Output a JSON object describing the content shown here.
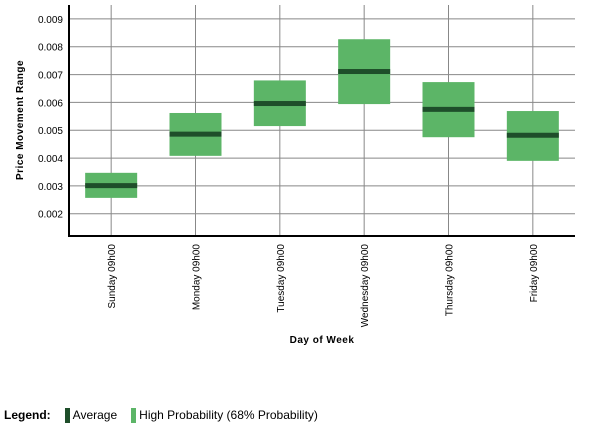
{
  "chart_data": {
    "type": "box",
    "xlabel": "Day of Week",
    "ylabel": "Price Movement Range",
    "ylim": [
      0.0012,
      0.0095
    ],
    "yticks": [
      "0.002",
      "0.003",
      "0.004",
      "0.005",
      "0.006",
      "0.007",
      "0.008",
      "0.009"
    ],
    "grid": true,
    "categories": [
      "Sunday 09h00",
      "Monday 09h00",
      "Tuesday 09h00",
      "Wednesday 09h00",
      "Thursday 09h00",
      "Friday 09h00"
    ],
    "series": [
      {
        "name": "Average",
        "values": [
          0.00301,
          0.00486,
          0.00596,
          0.00711,
          0.00575,
          0.00482
        ]
      },
      {
        "name": "High Probability (68% Probability)",
        "low": [
          0.00257,
          0.00408,
          0.00515,
          0.00594,
          0.00475,
          0.0039
        ],
        "high": [
          0.00347,
          0.00562,
          0.00679,
          0.00827,
          0.00673,
          0.00569
        ]
      }
    ],
    "colors": {
      "box": "#5cb567",
      "average": "#1e4e2a",
      "grid": "#888888",
      "axis": "#000000"
    }
  },
  "legend": {
    "title": "Legend:",
    "items": [
      {
        "label": "Average",
        "color": "#1e4e2a"
      },
      {
        "label": "High Probability (68% Probability)",
        "color": "#5cb567"
      }
    ]
  }
}
